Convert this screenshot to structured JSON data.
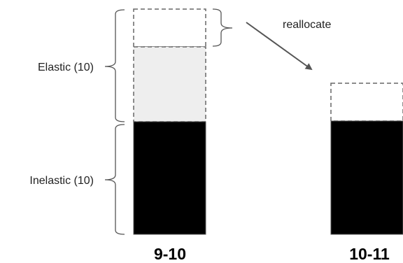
{
  "labels": {
    "elastic": "Elastic (10)",
    "inelastic": "Inelastic (10)",
    "reallocate": "reallocate"
  },
  "time_slots": {
    "first": "9-10",
    "second": "10-11"
  },
  "colors": {
    "inelastic_fill": "#000000",
    "elastic_used_fill": "#eeeeee",
    "dashed_outline": "#666666",
    "bracket": "#555555",
    "arrow": "#555555"
  }
}
